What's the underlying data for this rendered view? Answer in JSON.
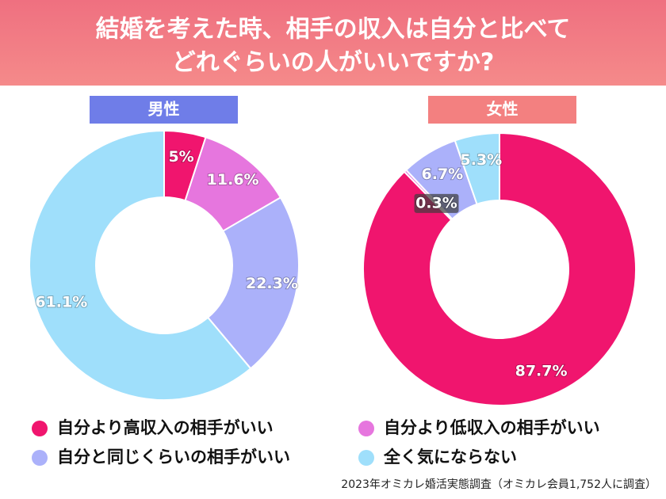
{
  "title_lines": [
    "結婚を考えた時、相手の収入は自分と比べて",
    "どれぐらいの人がいいですか?"
  ],
  "legend": [
    {
      "name": "自分より高収入の相手がいい",
      "color": "#f0156e"
    },
    {
      "name": "自分より低収入の相手がいい",
      "color": "#e676de"
    },
    {
      "name": "自分と同じくらいの相手がいい",
      "color": "#abb1fa"
    },
    {
      "name": "全く気にならない",
      "color": "#9fdffb"
    }
  ],
  "chart_data": [
    {
      "type": "donut",
      "title": "男性",
      "title_color": "#6f7de8",
      "values": [
        5,
        11.6,
        22.3,
        61.1
      ],
      "value_labels": [
        "5%",
        "11.6%",
        "22.3%",
        "61.1%"
      ]
    },
    {
      "type": "donut",
      "title": "女性",
      "title_color": "#f38080",
      "values": [
        87.7,
        0.3,
        6.7,
        5.3
      ],
      "value_labels": [
        "87.7%",
        "0.3%",
        "6.7%",
        "5.3%"
      ]
    }
  ],
  "footnote": "2023年オミカレ婚活実態調査（オミカレ会員1,752人に調査）"
}
